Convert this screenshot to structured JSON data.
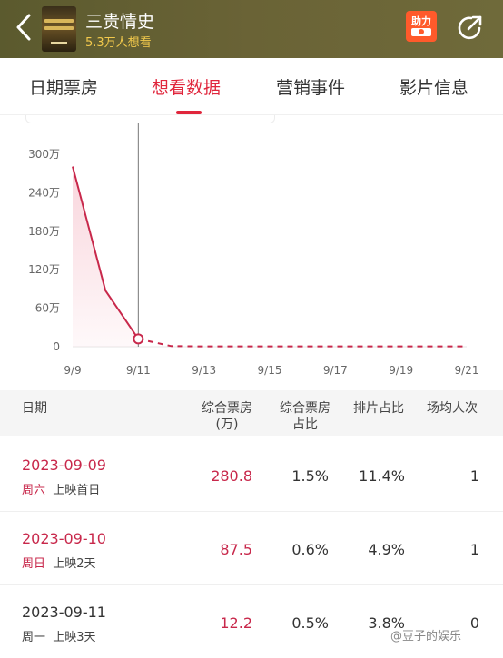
{
  "header": {
    "title": "三贵情史",
    "subtitle": "5.3万人想看",
    "help_label": "助力"
  },
  "tabs": [
    {
      "label": "日期票房"
    },
    {
      "label": "想看数据"
    },
    {
      "label": "营销事件"
    },
    {
      "label": "影片信息"
    }
  ],
  "chart_data": {
    "type": "line",
    "x_ticks": [
      "9/9",
      "9/11",
      "9/13",
      "9/15",
      "9/17",
      "9/19",
      "9/21"
    ],
    "y_ticks": [
      "300万",
      "240万",
      "180万",
      "120万",
      "60万",
      "0"
    ],
    "ylim": [
      0,
      300
    ],
    "x": [
      "9/9",
      "9/10",
      "9/11",
      "9/12",
      "9/13",
      "9/14",
      "9/15",
      "9/16",
      "9/17",
      "9/18",
      "9/19",
      "9/20",
      "9/21"
    ],
    "actual": [
      280.8,
      87.5,
      12.2
    ],
    "projected": [
      12.2,
      1,
      0.5,
      0.5,
      0.5,
      0.5,
      0.5,
      0.5,
      0.5,
      0.5,
      0.5
    ],
    "selected": "9/11",
    "colors": {
      "line": "#c8284b",
      "area": "#f9d5dc",
      "grid": "#e6e6e6",
      "cursor": "#777777"
    }
  },
  "table": {
    "headers": {
      "date": "日期",
      "box_office_l1": "综合票房",
      "box_office_l2": "(万)",
      "share_l1": "综合票房",
      "share_l2": "占比",
      "schedule": "排片占比",
      "avg": "场均人次"
    },
    "rows": [
      {
        "date": "2023-09-09",
        "weekday": "周六",
        "note": "上映首日",
        "box_office": "280.8",
        "share": "1.5%",
        "schedule": "11.4%",
        "avg": "1"
      },
      {
        "date": "2023-09-10",
        "weekday": "周日",
        "note": "上映2天",
        "box_office": "87.5",
        "share": "0.6%",
        "schedule": "4.9%",
        "avg": "1"
      },
      {
        "date": "2023-09-11",
        "weekday": "周一",
        "note": "上映3天",
        "box_office": "12.2",
        "share": "0.5%",
        "schedule": "3.8%",
        "avg": "0"
      }
    ]
  },
  "watermark": "@豆子的娱乐"
}
